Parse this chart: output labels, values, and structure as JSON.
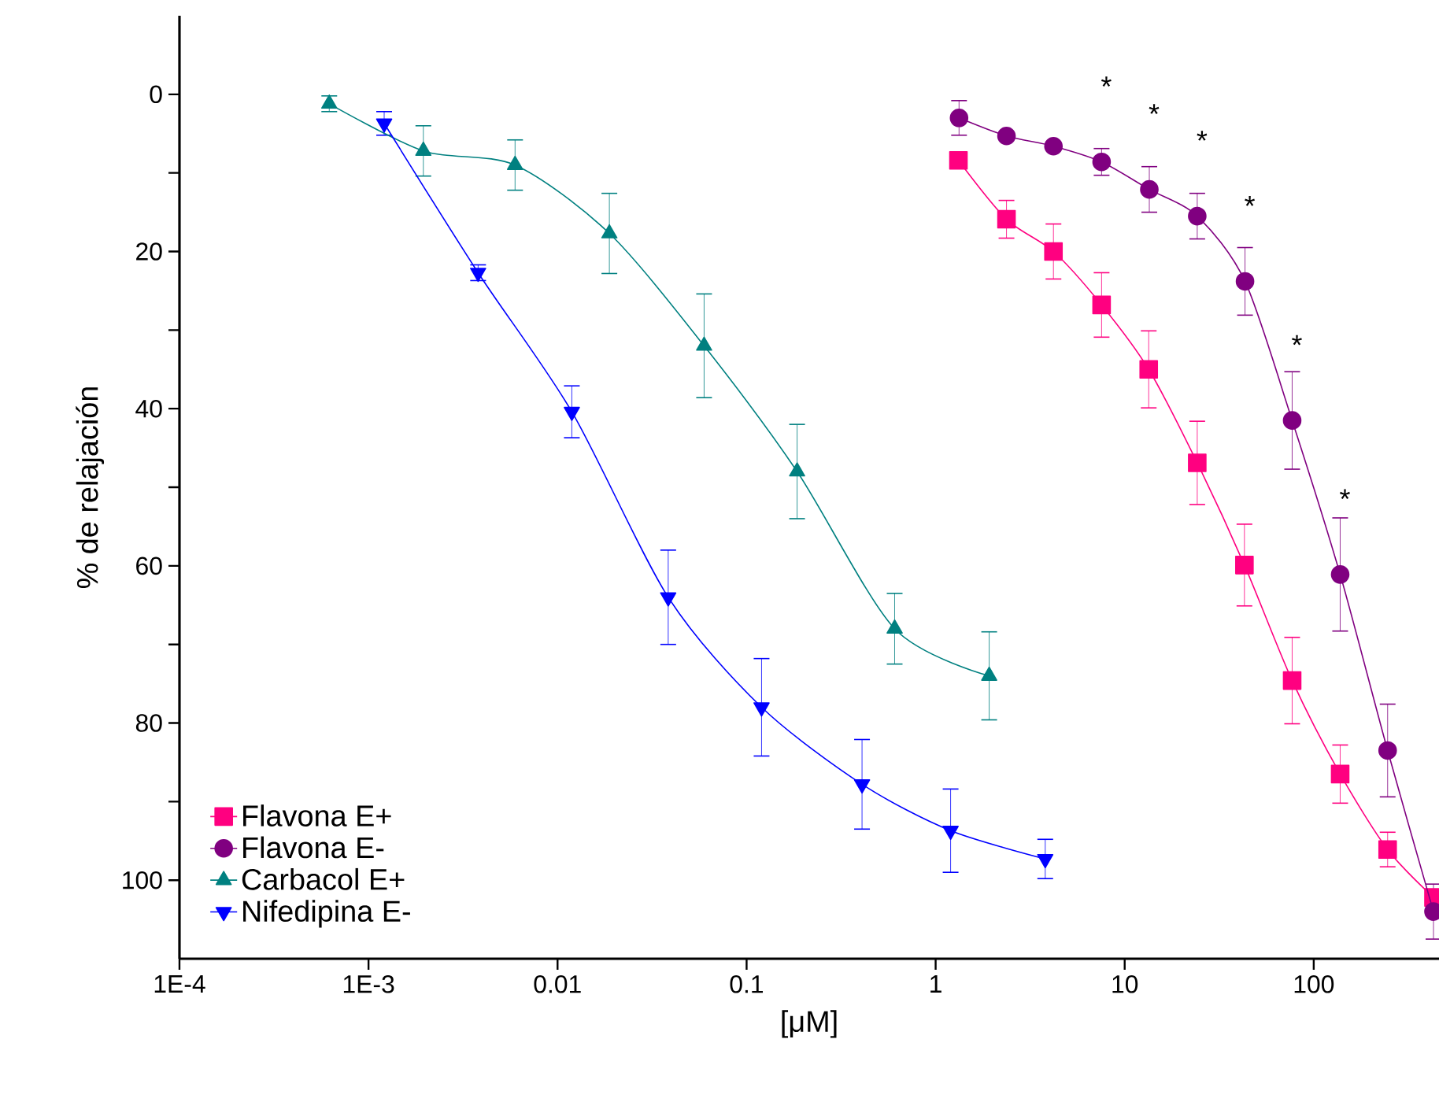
{
  "chart_data": {
    "type": "line",
    "xlabel": "[μM]",
    "ylabel": "% de relajación",
    "log": "x",
    "legend": "bottom left",
    "line_style": "solid",
    "xlim": [
      0.0001,
      460
    ],
    "ylim": [
      110,
      -10
    ],
    "xticks": [
      {
        "value": 0.0001,
        "label": "1E-4"
      },
      {
        "value": 0.001,
        "label": "1E-3"
      },
      0.01,
      0.1,
      1,
      10,
      100
    ],
    "yticks": [
      0,
      {
        "value": 10,
        "label": null
      },
      20,
      {
        "value": 30,
        "label": null
      },
      40,
      {
        "value": 50,
        "label": null
      },
      60,
      {
        "value": 70,
        "label": null
      },
      80,
      {
        "value": 90,
        "label": null
      },
      100
    ],
    "series": [
      {
        "name": "Flavona E+",
        "color": "#ff0080",
        "marker": "square",
        "x": [
          1.32,
          2.37,
          4.2,
          7.55,
          13.4,
          24.2,
          43,
          76.9,
          138,
          246,
          430
        ],
        "values": [
          8.4,
          15.9,
          20,
          26.8,
          35,
          46.9,
          59.9,
          74.6,
          86.5,
          96.1,
          102.2
        ],
        "errors": [
          null,
          2.4,
          3.5,
          4.1,
          4.9,
          5.3,
          5.2,
          5.5,
          3.7,
          2.2,
          null
        ]
      },
      {
        "name": "Flavona E-",
        "color": "#800080",
        "marker": "circle",
        "x": [
          1.33,
          2.37,
          4.2,
          7.55,
          13.5,
          24.2,
          43.3,
          76.9,
          138,
          246,
          430
        ],
        "values": [
          3.0,
          5.3,
          6.6,
          8.6,
          12.1,
          15.5,
          23.8,
          41.5,
          61.1,
          83.5,
          104
        ],
        "errors": [
          2.2,
          null,
          null,
          1.7,
          2.9,
          2.9,
          4.3,
          6.2,
          7.2,
          5.9,
          3.5
        ]
      },
      {
        "name": "Carbacol E+",
        "color": "#008080",
        "marker": "triangle",
        "x": [
          0.00062,
          0.00195,
          0.00596,
          0.0188,
          0.0596,
          0.185,
          0.607,
          1.92
        ],
        "values": [
          1.2,
          7.2,
          9,
          17.7,
          32,
          48,
          68,
          74
        ],
        "errors": [
          1,
          3.2,
          3.2,
          5.1,
          6.6,
          6,
          4.5,
          5.6
        ]
      },
      {
        "name": "Nifedipina E-",
        "color": "#0000ff",
        "marker": "triangle down",
        "x": [
          0.00121,
          0.0038,
          0.0119,
          0.0385,
          0.12,
          0.408,
          1.2,
          3.8
        ],
        "values": [
          3.7,
          22.7,
          40.4,
          64,
          78,
          87.8,
          93.7,
          97.3
        ],
        "errors": [
          1.5,
          1,
          3.3,
          6,
          6.2,
          5.7,
          5.3,
          2.5
        ]
      }
    ],
    "annotations": [
      {
        "text": "*",
        "x": 7.55,
        "y": 8.6
      },
      {
        "text": "*",
        "x": 13.5,
        "y": 12.1
      },
      {
        "text": "*",
        "x": 24.2,
        "y": 15.5
      },
      {
        "text": "*",
        "x": 43.3,
        "y": 23.8
      },
      {
        "text": "*",
        "x": 76.9,
        "y": 41.5
      },
      {
        "text": "*",
        "x": 138,
        "y": 61.1
      }
    ]
  }
}
